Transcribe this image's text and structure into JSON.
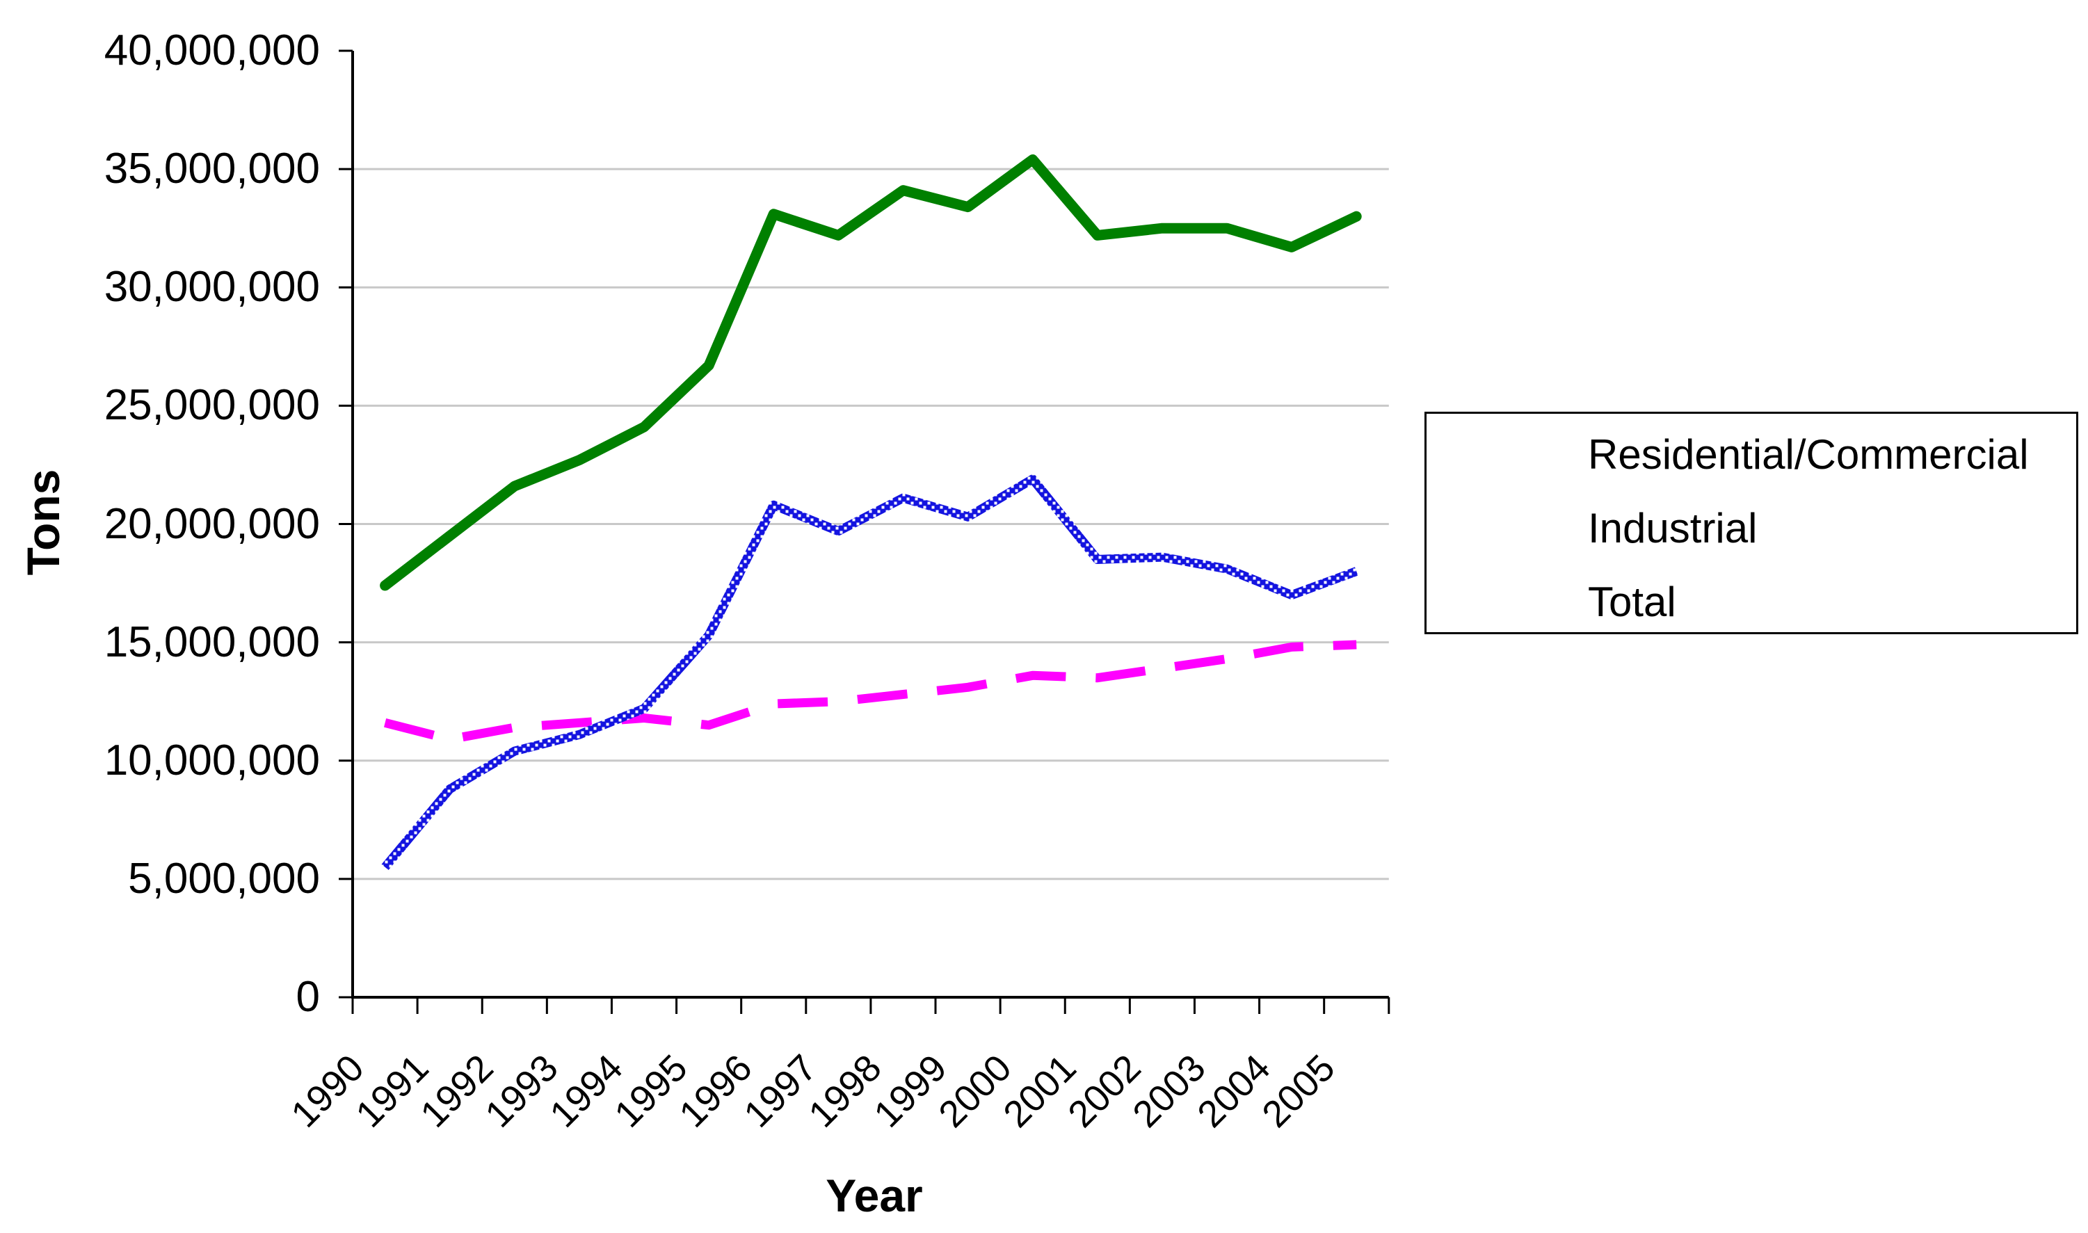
{
  "chart_data": {
    "type": "line",
    "title": "",
    "xlabel": "Year",
    "ylabel": "Tons",
    "categories": [
      "1990",
      "1991",
      "1992",
      "1993",
      "1994",
      "1995",
      "1996",
      "1997",
      "1998",
      "1999",
      "2000",
      "2001",
      "2002",
      "2003",
      "2004",
      "2005"
    ],
    "y_tick_labels": [
      "0",
      "5,000,000",
      "10,000,000",
      "15,000,000",
      "20,000,000",
      "25,000,000",
      "30,000,000",
      "35,000,000",
      "40,000,000"
    ],
    "ylim": [
      0,
      40000000
    ],
    "y_step": 5000000,
    "grid": "horizontal",
    "legend_position": "right",
    "series": [
      {
        "name": "Residential/Commercial",
        "color": "#FF00FF",
        "line_style": "dashed",
        "values": [
          11600000,
          10900000,
          11400000,
          11600000,
          11800000,
          11500000,
          12400000,
          12500000,
          12800000,
          13100000,
          13600000,
          13500000,
          13900000,
          14300000,
          14800000,
          14900000
        ]
      },
      {
        "name": "Industrial",
        "color": "#1414E0",
        "line_style": "patterned",
        "values": [
          5500000,
          8800000,
          10400000,
          11100000,
          12200000,
          15300000,
          20800000,
          19700000,
          21100000,
          20300000,
          21900000,
          18500000,
          18600000,
          18100000,
          17000000,
          18000000
        ]
      },
      {
        "name": "Total",
        "color": "#008000",
        "line_style": "solid",
        "values": [
          17400000,
          19500000,
          21600000,
          22700000,
          24100000,
          26700000,
          33100000,
          32200000,
          34100000,
          33400000,
          35400000,
          32200000,
          32500000,
          32500000,
          31700000,
          33000000
        ]
      }
    ]
  },
  "colors": {
    "background": "#FFFFFF",
    "axis": "#000000",
    "gridline": "#C8C8C8",
    "residential_commercial": "#FF00FF",
    "industrial": "#1414E0",
    "total": "#008000"
  }
}
